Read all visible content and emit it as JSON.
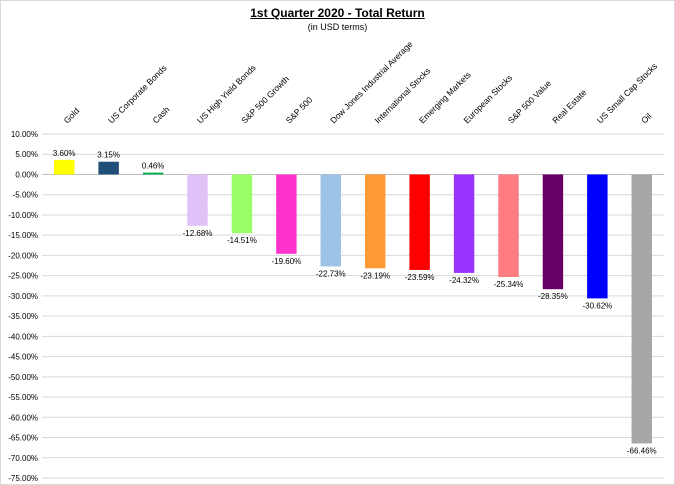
{
  "chart_data": {
    "type": "bar",
    "title": "1st Quarter 2020 - Total Return",
    "subtitle": "(in USD terms)",
    "xlabel": "",
    "ylabel": "",
    "ylim": [
      -75,
      10
    ],
    "grid": true,
    "legend": "none",
    "categories": [
      "Gold",
      "US Corporate Bonds",
      "Cash",
      "US High Yield Bonds",
      "S&P 500 Growth",
      "S&P 500",
      "Dow Jones Industrial Average",
      "International Stocks",
      "Emerging Markets",
      "European Stocks",
      "S&P 500 Value",
      "Real Estate",
      "US Small Cap Stocks",
      "Oil"
    ],
    "values": [
      3.6,
      3.15,
      0.46,
      -12.68,
      -14.51,
      -19.6,
      -22.73,
      -23.19,
      -23.59,
      -24.32,
      -25.34,
      -28.35,
      -30.62,
      -66.46
    ],
    "data_labels": [
      "3.60%",
      "3.15%",
      "0.46%",
      "-12.68%",
      "-14.51%",
      "-19.60%",
      "-22.73%",
      "-23.19%",
      "-23.59%",
      "-24.32%",
      "-25.34%",
      "-28.35%",
      "-30.62%",
      "-66.46%"
    ],
    "colors": [
      "#ffff00",
      "#1f4e79",
      "#00b050",
      "#e2c0f8",
      "#99ff66",
      "#ff33cc",
      "#9dc3e6",
      "#ff9933",
      "#ff0000",
      "#9933ff",
      "#ff7c80",
      "#660066",
      "#0000ff",
      "#a6a6a6"
    ],
    "yticks": [
      10,
      5,
      0,
      -5,
      -10,
      -15,
      -20,
      -25,
      -30,
      -35,
      -40,
      -45,
      -50,
      -55,
      -60,
      -65,
      -70,
      -75
    ],
    "ytick_labels": [
      "10.00%",
      "5.00%",
      "0.00%",
      "-5.00%",
      "-10.00%",
      "-15.00%",
      "-20.00%",
      "-25.00%",
      "-30.00%",
      "-35.00%",
      "-40.00%",
      "-45.00%",
      "-50.00%",
      "-55.00%",
      "-60.00%",
      "-65.00%",
      "-70.00%",
      "-75.00%"
    ]
  }
}
